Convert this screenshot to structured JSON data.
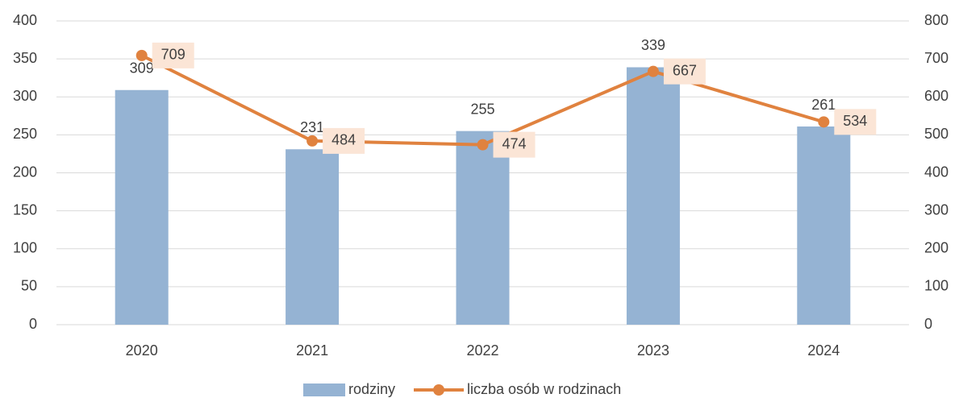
{
  "chart_data": {
    "type": "combo",
    "categories": [
      "2020",
      "2021",
      "2022",
      "2023",
      "2024"
    ],
    "series": [
      {
        "name": "rodziny",
        "type": "bar",
        "color": "#95b3d3",
        "values": [
          309,
          231,
          255,
          339,
          261
        ]
      },
      {
        "name": "liczba osób w rodzinach",
        "type": "line",
        "axis": "y2",
        "color": "#e0823f",
        "values": [
          709,
          484,
          474,
          667,
          534
        ]
      }
    ],
    "ylim": [
      0,
      400
    ],
    "yticks": [
      0,
      50,
      100,
      150,
      200,
      250,
      300,
      350,
      400
    ],
    "y2lim": [
      0,
      800
    ],
    "y2ticks": [
      0,
      100,
      200,
      300,
      400,
      500,
      600,
      700,
      800
    ],
    "grid": true,
    "legend": "bottom"
  }
}
